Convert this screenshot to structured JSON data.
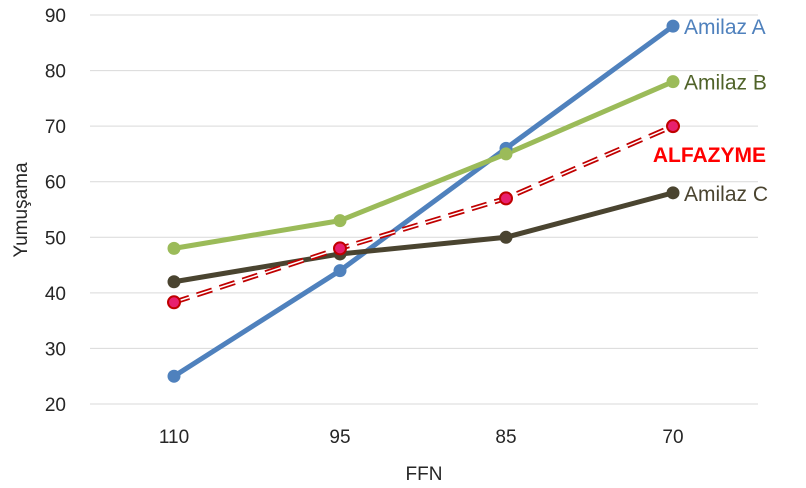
{
  "chart_data": {
    "type": "line",
    "title": "",
    "xlabel": "FFN",
    "ylabel": "Yumuşama",
    "categories": [
      "110",
      "95",
      "85",
      "70"
    ],
    "ylim": [
      20,
      90
    ],
    "yticks": [
      20,
      30,
      40,
      50,
      60,
      70,
      80,
      90
    ],
    "grid": "horizontal",
    "legend": "inline labels at line ends",
    "series": [
      {
        "name": "Amilaz A",
        "values": [
          25,
          44,
          66,
          88
        ],
        "color": "#4f81bd",
        "dashed": false
      },
      {
        "name": "Amilaz B",
        "values": [
          48,
          53,
          65,
          78
        ],
        "color": "#9bbb59",
        "dashed": false
      },
      {
        "name": "Amilaz C",
        "values": [
          42,
          47,
          50,
          58
        ],
        "color": "#4a4430",
        "dashed": false
      },
      {
        "name": "ALFAZYME",
        "values": [
          38.3,
          48,
          57,
          70
        ],
        "color": "#c00000",
        "label_color": "#ff0000",
        "dashed": true
      }
    ]
  }
}
